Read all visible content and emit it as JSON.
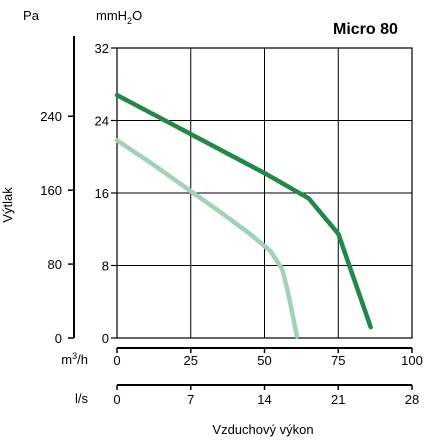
{
  "chart_data": {
    "type": "line",
    "title": "Micro 80",
    "ylabel": "Výtlak",
    "xlabel": "Vzduchový výkon",
    "left_axis": {
      "unit": "Pa",
      "ticks": [
        {
          "value": 0,
          "label": "0"
        },
        {
          "value": 80,
          "label": "80"
        },
        {
          "value": 160,
          "label": "160"
        },
        {
          "value": 240,
          "label": "240"
        }
      ]
    },
    "right_axis": {
      "unit_base": "mmH",
      "unit_sub": "2",
      "unit_end": "O",
      "ylim": [
        0,
        32
      ],
      "ticks": [
        {
          "value": 0,
          "label": "0"
        },
        {
          "value": 8,
          "label": "8"
        },
        {
          "value": 16,
          "label": "16"
        },
        {
          "value": 24,
          "label": "24"
        },
        {
          "value": 32,
          "label": "32"
        }
      ]
    },
    "x_axis_m3h": {
      "unit_base": "m",
      "unit_sup": "3",
      "unit_end": "/h",
      "xlim": [
        0,
        100
      ],
      "ticks": [
        {
          "value": 0,
          "label": "0"
        },
        {
          "value": 25,
          "label": "25"
        },
        {
          "value": 50,
          "label": "50"
        },
        {
          "value": 75,
          "label": "75"
        },
        {
          "value": 100,
          "label": "100"
        }
      ]
    },
    "x_axis_ls": {
      "unit": "l/s",
      "ticks": [
        {
          "value": 0,
          "label": "0"
        },
        {
          "value": 7,
          "label": "7"
        },
        {
          "value": 14,
          "label": "14"
        },
        {
          "value": 21,
          "label": "21"
        },
        {
          "value": 28,
          "label": "28"
        }
      ]
    },
    "grid": true,
    "series": [
      {
        "color": "#1f8a46",
        "x": [
          0,
          25,
          50,
          65,
          75,
          86
        ],
        "y": [
          26.8,
          22.5,
          18.2,
          15.4,
          11.5,
          1.2
        ]
      },
      {
        "color": "#9fd3b6",
        "x": [
          0,
          12,
          25,
          35,
          45,
          52,
          56,
          58,
          61
        ],
        "y": [
          21.8,
          19.2,
          16.2,
          13.9,
          11.5,
          9.6,
          7.6,
          5.0,
          0.2
        ]
      }
    ]
  }
}
